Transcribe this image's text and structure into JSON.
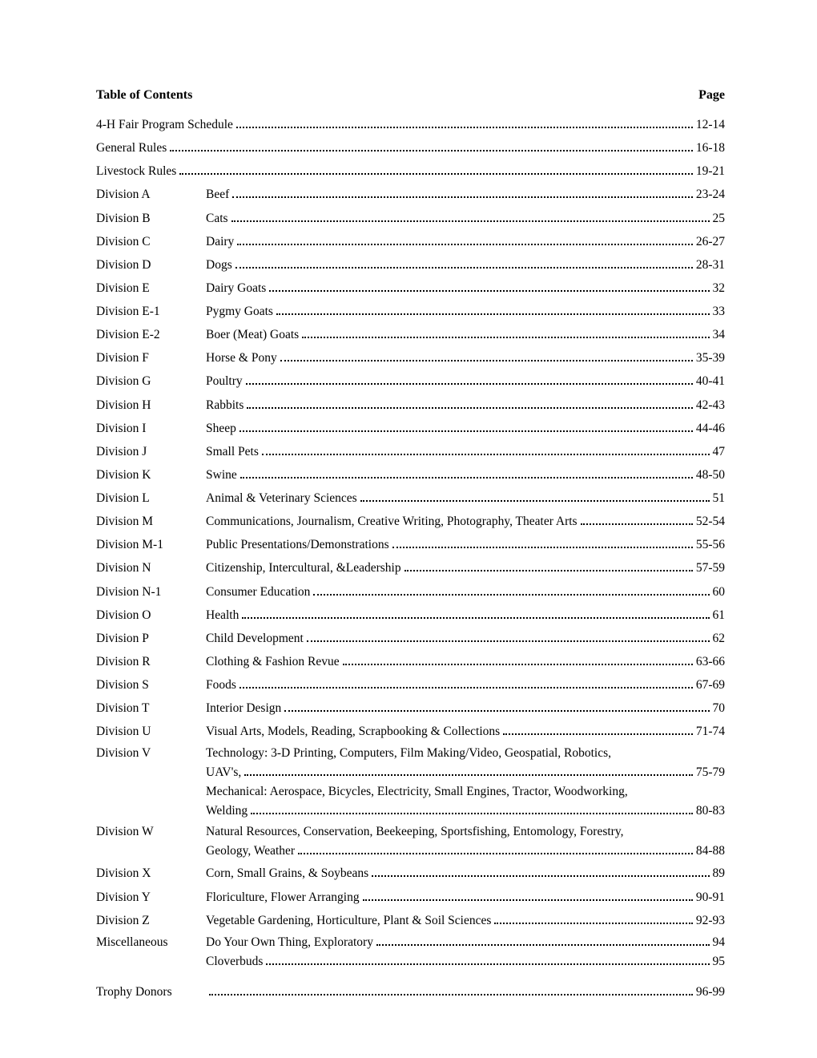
{
  "header": {
    "left": "Table of Contents",
    "right": "Page"
  },
  "entries": [
    {
      "label": "",
      "title": "4-H Fair Program Schedule",
      "page": "12-14"
    },
    {
      "label": "",
      "title": "General Rules",
      "page": "16-18"
    },
    {
      "label": "",
      "title": "Livestock Rules",
      "page": "19-21"
    },
    {
      "label": "Division A",
      "title": "Beef",
      "page": "23-24"
    },
    {
      "label": "Division B",
      "title": "Cats",
      "page": "25"
    },
    {
      "label": "Division C",
      "title": "Dairy",
      "page": "26-27"
    },
    {
      "label": "Division D",
      "title": "Dogs",
      "page": "28-31"
    },
    {
      "label": "Division E",
      "title": "Dairy Goats",
      "page": "32"
    },
    {
      "label": "Division E-1",
      "title": "Pygmy Goats",
      "page": "33"
    },
    {
      "label": "Division E-2",
      "title": "Boer (Meat) Goats",
      "page": "34"
    },
    {
      "label": "Division F",
      "title": "Horse & Pony",
      "page": "35-39"
    },
    {
      "label": "Division G",
      "title": "Poultry",
      "page": "40-41"
    },
    {
      "label": "Division H",
      "title": "Rabbits",
      "page": "42-43"
    },
    {
      "label": "Division I",
      "title": "Sheep",
      "page": "44-46"
    },
    {
      "label": "Division J",
      "title": "Small Pets",
      "page": "47"
    },
    {
      "label": "Division K",
      "title": "Swine",
      "page": "48-50"
    },
    {
      "label": "Division L",
      "title": "Animal & Veterinary Sciences",
      "page": "51"
    },
    {
      "label": "Division M",
      "title": "Communications, Journalism, Creative Writing, Photography, Theater Arts",
      "page": "52-54"
    },
    {
      "label": "Division M-1",
      "title": "Public Presentations/Demonstrations",
      "page": "55-56"
    },
    {
      "label": "Division N",
      "title": "Citizenship, Intercultural, &Leadership",
      "page": "57-59"
    },
    {
      "label": "Division N-1",
      "title": "Consumer Education",
      "page": "60"
    },
    {
      "label": "Division O",
      "title": "Health",
      "page": "61"
    },
    {
      "label": "Division P",
      "title": "Child Development",
      "page": "62"
    },
    {
      "label": "Division R",
      "title": "Clothing & Fashion Revue",
      "page": "63-66"
    },
    {
      "label": "Division S",
      "title": "Foods",
      "page": "67-69"
    },
    {
      "label": "Division T",
      "title": "Interior Design",
      "page": "70"
    },
    {
      "label": "Division U",
      "title": "Visual Arts, Models, Reading, Scrapbooking & Collections",
      "page": "71-74"
    }
  ],
  "divV": {
    "label": "Division V",
    "line1": "Technology: 3-D Printing, Computers, Film Making/Video, Geospatial, Robotics,",
    "line2_title": "UAV's,",
    "line2_page": "75-79",
    "line3": "Mechanical: Aerospace, Bicycles, Electricity, Small Engines, Tractor, Woodworking,",
    "line4_title": "Welding",
    "line4_page": "80-83"
  },
  "divW": {
    "label": "Division W",
    "line1": "Natural Resources, Conservation, Beekeeping, Sportsfishing, Entomology, Forestry,",
    "line2_title": "Geology, Weather",
    "line2_page": "84-88"
  },
  "entries2": [
    {
      "label": "Division X",
      "title": "Corn, Small Grains, & Soybeans",
      "page": "89"
    },
    {
      "label": "Division Y",
      "title": "Floriculture, Flower Arranging",
      "page": "90-91"
    },
    {
      "label": "Division Z",
      "title": "Vegetable Gardening, Horticulture, Plant & Soil Sciences",
      "page": "92-93"
    }
  ],
  "misc": {
    "label": "Miscellaneous",
    "e1_title": "Do Your Own Thing, Exploratory",
    "e1_page": "94",
    "e2_title": "Cloverbuds",
    "e2_page": "95"
  },
  "trophy": {
    "label": "Trophy Donors",
    "title": "",
    "page": "96-99"
  }
}
